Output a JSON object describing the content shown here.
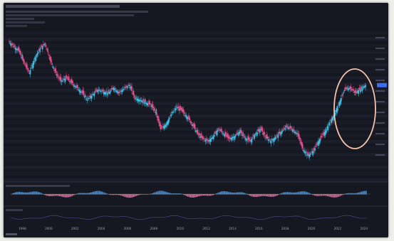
{
  "chart_data": {
    "type": "line",
    "title": "",
    "xlabel": "",
    "ylabel": "",
    "x_ticks": [
      "1998",
      "2000",
      "2002",
      "2004",
      "2006",
      "2008",
      "2010",
      "2012",
      "2014",
      "2016",
      "2018",
      "2020",
      "2022",
      "2024"
    ],
    "x_range": [
      1997,
      2024.5
    ],
    "series": [
      {
        "values_x": [
          1997.0,
          1997.4,
          1997.8,
          1998.2,
          1998.6,
          1999.0,
          1999.4,
          1999.8,
          2000.2,
          2000.6,
          2001.0,
          2001.4,
          2001.8,
          2002.2,
          2002.6,
          2003.0,
          2003.4,
          2003.8,
          2004.2,
          2004.6,
          2005.0,
          2005.4,
          2005.8,
          2006.2,
          2006.6,
          2007.0,
          2007.4,
          2007.8,
          2008.2,
          2008.6,
          2009.0,
          2009.4,
          2009.8,
          2010.2,
          2010.6,
          2011.0,
          2011.4,
          2011.8,
          2012.2,
          2012.6,
          2013.0,
          2013.4,
          2013.8,
          2014.2,
          2014.6,
          2015.0,
          2015.4,
          2015.8,
          2016.2,
          2016.6,
          2017.0,
          2017.4,
          2017.8,
          2018.2,
          2018.6,
          2019.0,
          2019.4,
          2019.8,
          2020.2,
          2020.6,
          2021.0,
          2021.4,
          2021.8,
          2022.2,
          2022.6,
          2023.0,
          2023.4,
          2023.8,
          2024.2
        ],
        "values": [
          0.88,
          0.84,
          0.8,
          0.7,
          0.62,
          0.74,
          0.82,
          0.86,
          0.72,
          0.62,
          0.55,
          0.58,
          0.54,
          0.5,
          0.46,
          0.4,
          0.44,
          0.48,
          0.47,
          0.45,
          0.5,
          0.46,
          0.49,
          0.52,
          0.42,
          0.4,
          0.38,
          0.36,
          0.3,
          0.16,
          0.2,
          0.28,
          0.34,
          0.31,
          0.26,
          0.2,
          0.12,
          0.08,
          0.06,
          0.1,
          0.16,
          0.12,
          0.08,
          0.1,
          0.14,
          0.09,
          0.06,
          0.12,
          0.16,
          0.09,
          0.06,
          0.1,
          0.14,
          0.18,
          0.16,
          0.12,
          0.0,
          -0.06,
          -0.02,
          0.06,
          0.12,
          0.2,
          0.28,
          0.38,
          0.48,
          0.5,
          0.46,
          0.49,
          0.52
        ]
      }
    ],
    "colors": {
      "up": "#3ec1e6",
      "down": "#e8508c",
      "highlight_circle": "#f3c2a8",
      "price_tag": "#3a6df0"
    }
  },
  "indicator_panel": {
    "colors": {
      "positive": "#3aa0ff",
      "negative": "#ff6fb4"
    }
  }
}
